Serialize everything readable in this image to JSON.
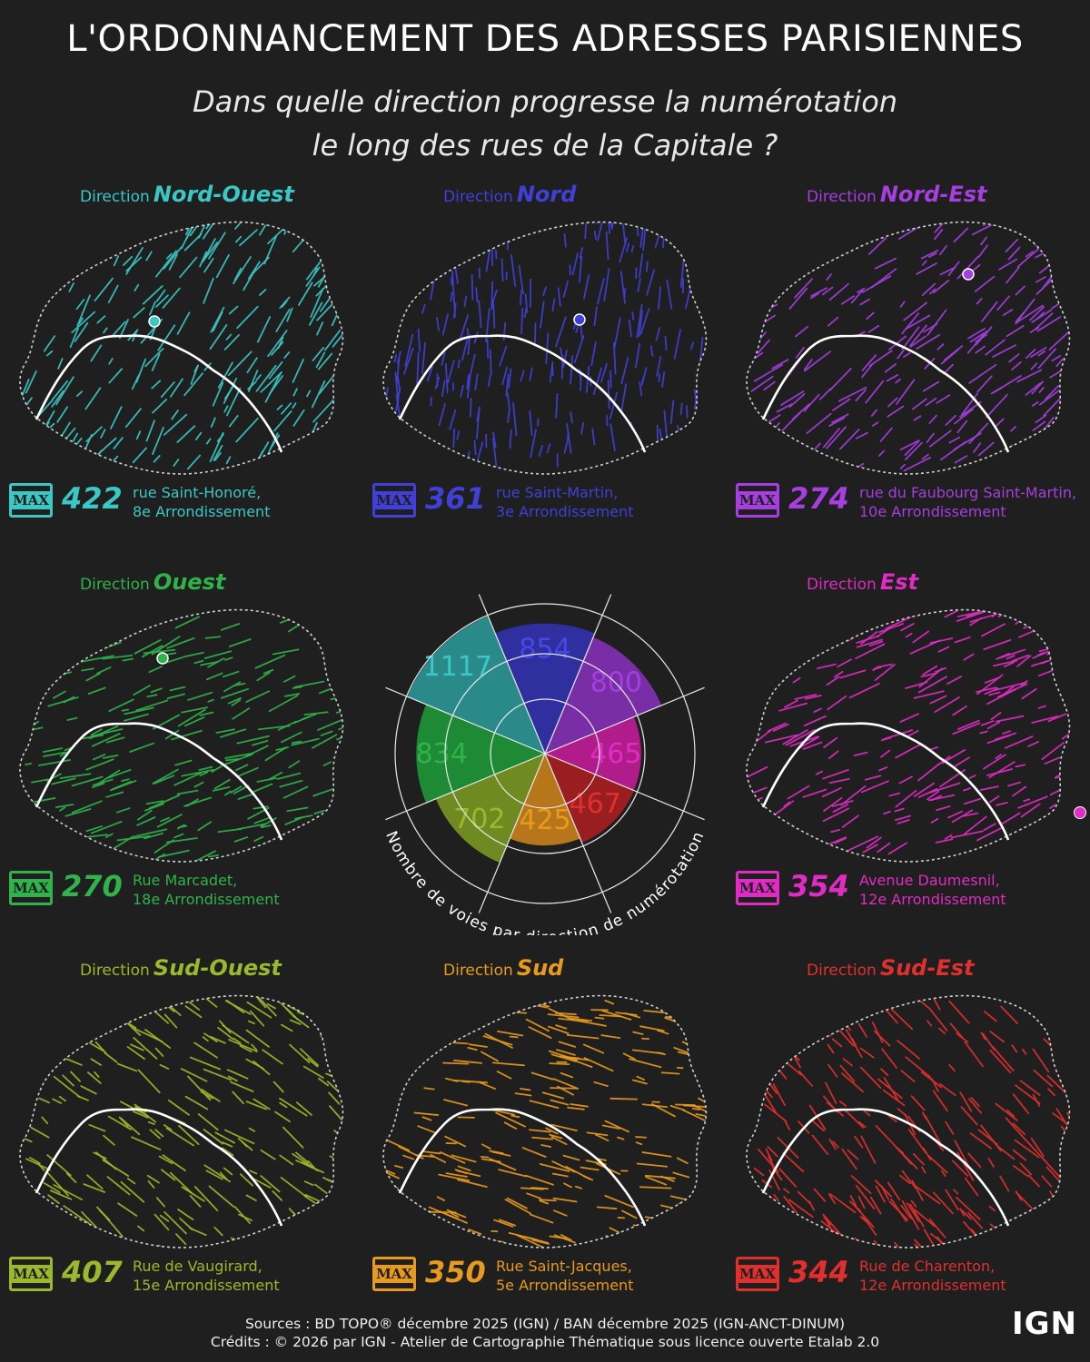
{
  "title": "L'ORDONNANCEMENT DES ADRESSES PARISIENNES",
  "subtitle_line1": "Dans quelle direction progresse la numérotation",
  "subtitle_line2": "le long des rues de la Capitale ?",
  "direction_prefix": "Direction",
  "max_label": "MAX",
  "panels": [
    {
      "key": "nw",
      "direction": "Nord-Ouest",
      "color": "#3bc7c4",
      "max": "422",
      "street": "rue Saint-Honoré,",
      "arrondissement": "8e Arrondissement"
    },
    {
      "key": "n",
      "direction": "Nord",
      "color": "#4040d8",
      "max": "361",
      "street": "rue Saint-Martin,",
      "arrondissement": "3e Arrondissement"
    },
    {
      "key": "ne",
      "direction": "Nord-Est",
      "color": "#a63ee0",
      "max": "274",
      "street": "rue du Faubourg Saint-Martin,",
      "arrondissement": "10e Arrondissement"
    },
    {
      "key": "w",
      "direction": "Ouest",
      "color": "#2fb34a",
      "max": "270",
      "street": "Rue Marcadet,",
      "arrondissement": "18e Arrondissement"
    },
    {
      "key": "e",
      "direction": "Est",
      "color": "#e02cc4",
      "max": "354",
      "street": "Avenue Daumesnil,",
      "arrondissement": "12e Arrondissement"
    },
    {
      "key": "sw",
      "direction": "Sud-Ouest",
      "color": "#9cb82c",
      "max": "407",
      "street": "Rue de Vaugirard,",
      "arrondissement": "15e Arrondissement"
    },
    {
      "key": "s",
      "direction": "Sud",
      "color": "#e79a1e",
      "max": "350",
      "street": "Rue Saint-Jacques,",
      "arrondissement": "5e Arrondissement"
    },
    {
      "key": "se",
      "direction": "Sud-Est",
      "color": "#e0302e",
      "max": "344",
      "street": "Rue de Charenton,",
      "arrondissement": "12e Arrondissement"
    }
  ],
  "chart_data": {
    "type": "polar-area",
    "title": "Nombre de voies par direction de numérotation",
    "categories": [
      "Nord",
      "Nord-Est",
      "Est",
      "Sud-Est",
      "Sud",
      "Sud-Ouest",
      "Ouest",
      "Nord-Ouest"
    ],
    "values": [
      854,
      800,
      465,
      467,
      425,
      702,
      834,
      1117
    ],
    "colors": [
      "#2f2fa0",
      "#7a2ea6",
      "#b01c8a",
      "#9a1e20",
      "#b8761a",
      "#6f8a20",
      "#1f8a35",
      "#2a8a8a"
    ],
    "label_colors": [
      "#4848e6",
      "#a33ee0",
      "#e02cc4",
      "#e0302e",
      "#e79a1e",
      "#9cb82c",
      "#2fb34a",
      "#3bc7c4"
    ],
    "grid": true
  },
  "footer_line1": "Sources : BD TOPO® décembre 2025 (IGN) / BAN décembre 2025 (IGN-ANCT-DINUM)",
  "footer_line2": "Crédits : © 2026 par IGN - Atelier de Cartographie Thématique sous licence ouverte Etalab 2.0",
  "logo": "IGN"
}
